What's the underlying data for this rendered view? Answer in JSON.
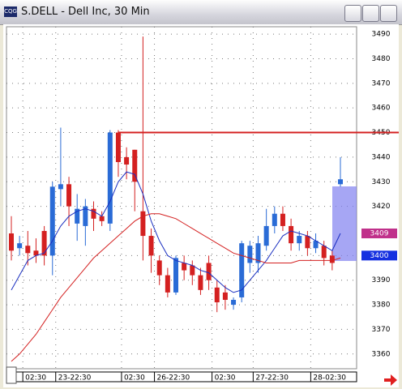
{
  "window": {
    "title": "S.DELL - Dell Inc, 30 Min"
  },
  "chart_data": {
    "type": "candlestick",
    "categories": [
      null,
      "02:30",
      null,
      null,
      null,
      "23-22:30",
      null,
      null,
      null,
      null,
      null,
      null,
      null,
      "02:30",
      null,
      null,
      null,
      "26-22:30",
      null,
      null,
      null,
      null,
      null,
      null,
      "02:30",
      null,
      null,
      null,
      null,
      "27-22:30",
      null,
      null,
      null,
      null,
      null,
      null,
      "28-02:30",
      null,
      null,
      null,
      null
    ],
    "open": [
      3409,
      3403,
      3404,
      3402,
      3410,
      3400,
      3427,
      3429,
      3413,
      3412,
      3419,
      3416,
      3413,
      3450,
      3440,
      3443,
      3418,
      3408,
      3398,
      3392,
      3385,
      3397,
      3396,
      3392,
      3397,
      3387,
      3385,
      3380,
      3383,
      3397,
      3397,
      3404,
      3412,
      3417,
      3412,
      3405,
      3408,
      3403,
      3404,
      3400,
      3429
    ],
    "high": [
      3416,
      3408,
      3410,
      3407,
      3412,
      3430,
      3452,
      3432,
      3425,
      3423,
      3422,
      3418,
      3451,
      3451,
      3444,
      3443,
      3489,
      3411,
      3400,
      3395,
      3400,
      3400,
      3398,
      3395,
      3400,
      3390,
      3388,
      3383,
      3406,
      3406,
      3408,
      3419,
      3420,
      3420,
      3415,
      3410,
      3410,
      3409,
      3406,
      3402,
      3440
    ],
    "low": [
      3398,
      3400,
      3396,
      3397,
      3396,
      3392,
      3420,
      3412,
      3406,
      3404,
      3410,
      3412,
      3410,
      3432,
      3431,
      3418,
      3398,
      3393,
      3388,
      3383,
      3384,
      3390,
      3388,
      3384,
      3386,
      3377,
      3378,
      3378,
      3381,
      3393,
      3393,
      3402,
      3409,
      3410,
      3402,
      3402,
      3400,
      3401,
      3396,
      3394,
      3428
    ],
    "close": [
      3402,
      3405,
      3401,
      3400,
      3400,
      3428,
      3429,
      3420,
      3419,
      3420,
      3415,
      3414,
      3450,
      3438,
      3437,
      3430,
      3408,
      3400,
      3392,
      3385,
      3399,
      3394,
      3392,
      3386,
      3390,
      3381,
      3382,
      3382,
      3405,
      3404,
      3405,
      3412,
      3417,
      3412,
      3405,
      3408,
      3403,
      3406,
      3399,
      3397,
      3431
    ],
    "up_color": "#2a6bd6",
    "down_color": "#d42020",
    "overlays": [
      {
        "color": "#1a2fc0",
        "values": [
          3386,
          3392,
          3398,
          3400,
          3401,
          3406,
          3412,
          3416,
          3418,
          3419,
          3418,
          3416,
          3422,
          3430,
          3434,
          3433,
          3425,
          3414,
          3406,
          3400,
          3398,
          3397,
          3396,
          3394,
          3393,
          3390,
          3387,
          3385,
          3386,
          3390,
          3394,
          3398,
          3403,
          3408,
          3410,
          3409,
          3408,
          3406,
          3404,
          3402,
          3409
        ]
      },
      {
        "color": "#d42020",
        "values": [
          3357,
          3360,
          3364,
          3368,
          3373,
          3378,
          3383,
          3387,
          3391,
          3395,
          3399,
          3402,
          3405,
          3408,
          3411,
          3414,
          3416,
          3417,
          3417,
          3416,
          3415,
          3413,
          3411,
          3409,
          3407,
          3405,
          3403,
          3401,
          3400,
          3399,
          3398,
          3397,
          3397,
          3397,
          3397,
          3398,
          3398,
          3398,
          3398,
          3398,
          3399
        ]
      }
    ],
    "levels": [
      {
        "value": 3450,
        "color": "#d42020"
      }
    ],
    "price_markers": [
      {
        "value": 3409,
        "color": "#c0308a"
      },
      {
        "value": 3400,
        "color": "#1530e0"
      }
    ],
    "ylim": [
      3354,
      3493
    ],
    "yticks": [
      3360,
      3370,
      3380,
      3390,
      3400,
      3420,
      3430,
      3440,
      3450,
      3460,
      3470,
      3480,
      3490
    ],
    "grid": true
  }
}
